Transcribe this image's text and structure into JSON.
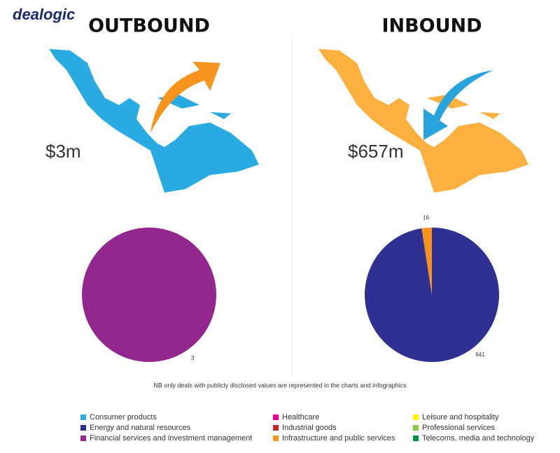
{
  "logo": "dealogic",
  "note": "NB only deals with publicly disclosed values are represented in the charts and infographics",
  "legend": {
    "categories": [
      "Consumer products",
      "Energy and natural resources",
      "Financial services and investment management",
      "Healthcare",
      "Industrial goods",
      "Infrastructure and public services",
      "Leisure and hospitality",
      "Professional services",
      "Telecoms, media and technology"
    ],
    "colors": [
      "#29abe2",
      "#2e3192",
      "#93278f",
      "#ec008c",
      "#c1272d",
      "#f7931e",
      "#fff200",
      "#8dc63f",
      "#009444"
    ]
  },
  "chart_data": [
    {
      "type": "pie",
      "title": "OUTBOUND",
      "annotation": "$3m",
      "map_color": "#29abe2",
      "values": [
        0,
        0,
        3,
        0,
        0,
        0,
        0,
        0,
        0
      ]
    },
    {
      "type": "pie",
      "title": "INBOUND",
      "annotation": "$657m",
      "map_color": "#fbb040",
      "values": [
        0,
        641,
        0,
        0,
        0,
        16,
        0,
        0,
        0
      ]
    }
  ]
}
